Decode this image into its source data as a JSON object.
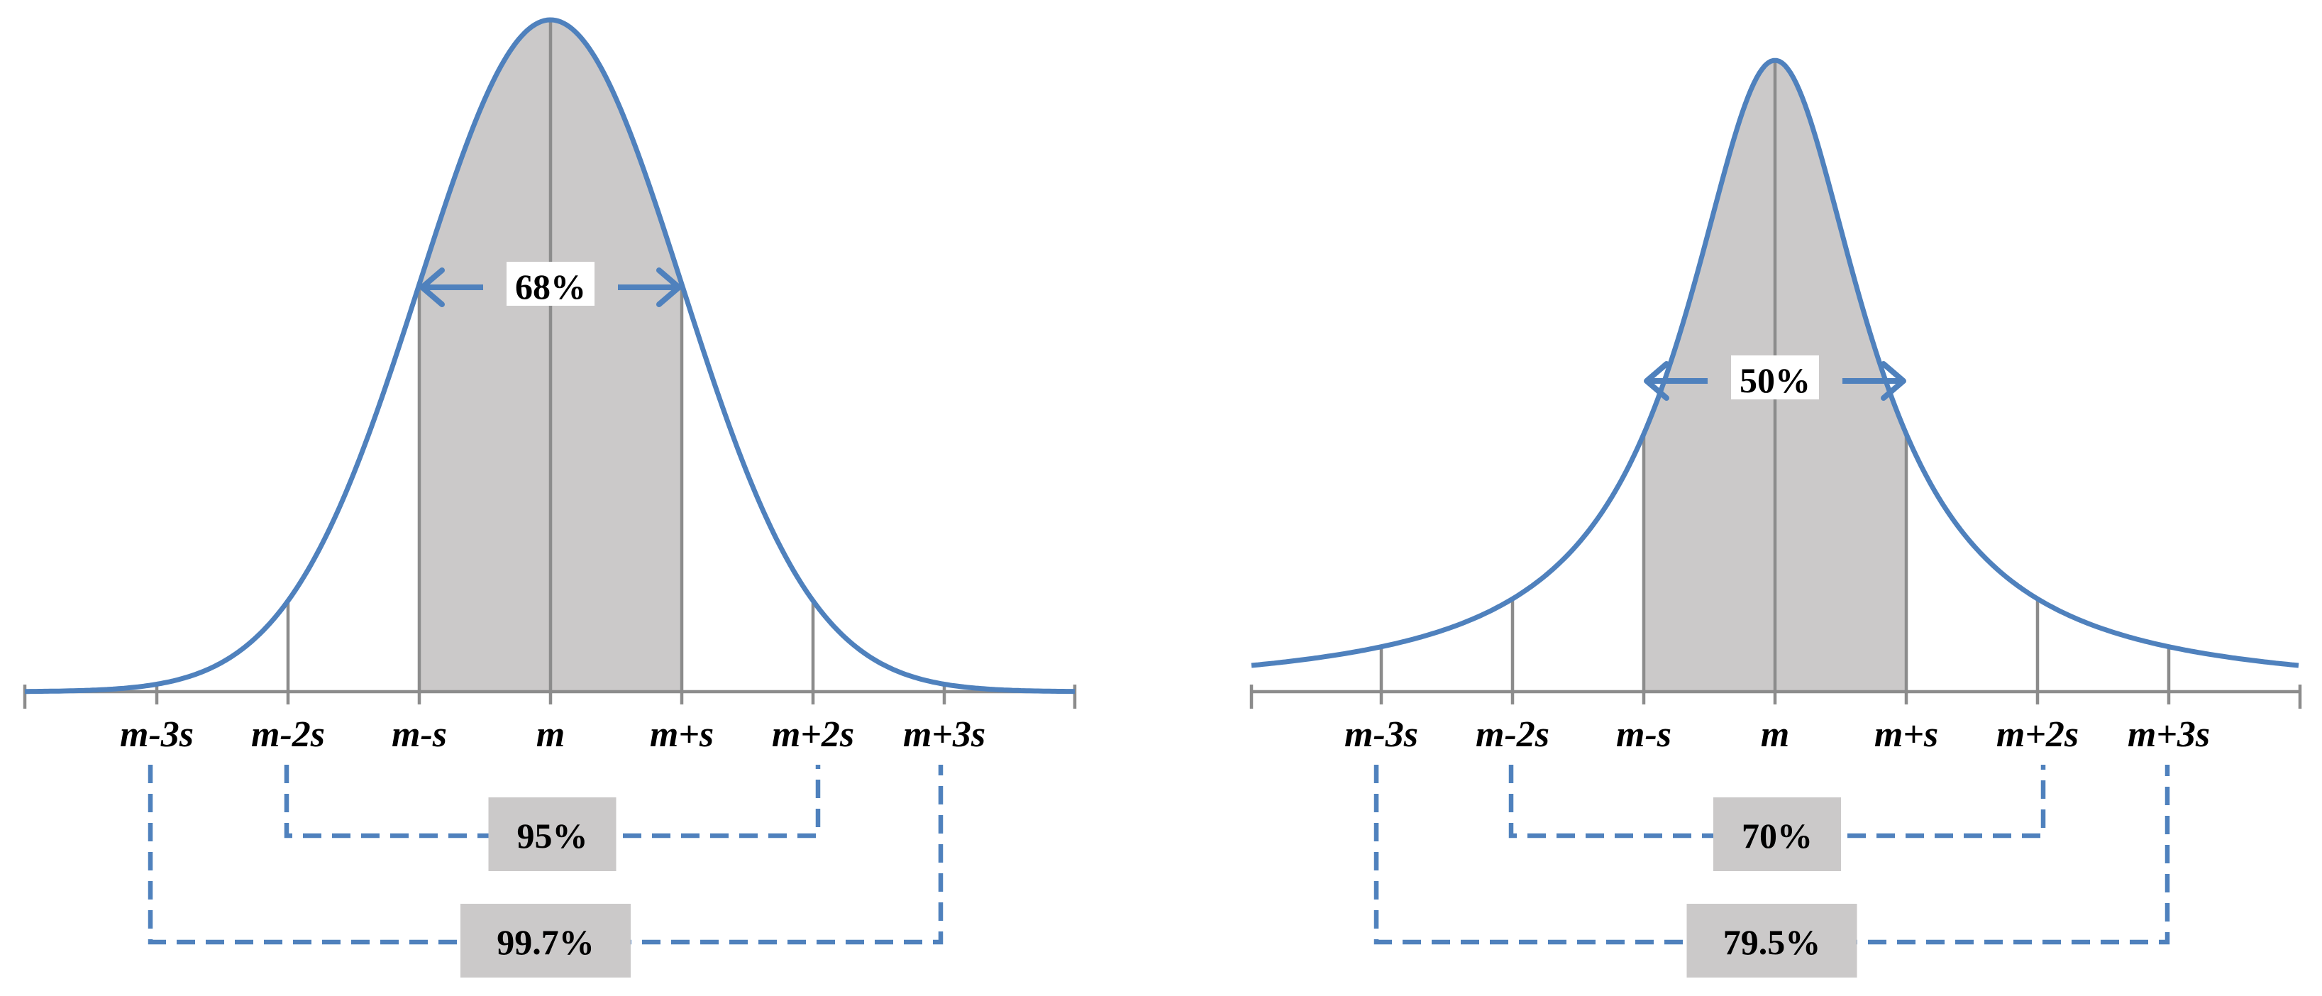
{
  "panels": [
    {
      "id": "normal",
      "shape": "bell",
      "tick_labels": [
        "m-3s",
        "m-2s",
        "m-s",
        "m",
        "m+s",
        "m+2s",
        "m+3s"
      ],
      "center_pct": "68%",
      "inner_bracket_pct": "95%",
      "outer_bracket_pct": "99.7%"
    },
    {
      "id": "heavy-tailed",
      "shape": "peaked",
      "tick_labels": [
        "m-3s",
        "m-2s",
        "m-s",
        "m",
        "m+s",
        "m+2s",
        "m+3s"
      ],
      "center_pct": "50%",
      "inner_bracket_pct": "70%",
      "outer_bracket_pct": "79.5%"
    }
  ],
  "colors": {
    "curve": "#4f81bd",
    "shading": "#cbc9c9",
    "gridline": "#8c8c8c"
  }
}
